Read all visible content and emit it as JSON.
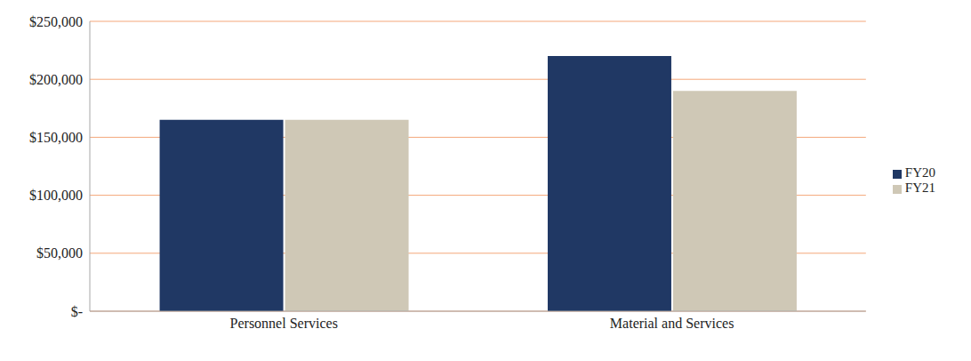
{
  "chart_data": {
    "type": "bar",
    "categories": [
      "Personnel Services",
      "Material and Services"
    ],
    "series": [
      {
        "name": "FY20",
        "color": "#203864",
        "values": [
          165000,
          220000
        ]
      },
      {
        "name": "FY21",
        "color": "#cfc8b6",
        "values": [
          165000,
          190000
        ]
      }
    ],
    "ylim": [
      0,
      250000
    ],
    "yticks": [
      {
        "value": 0,
        "label": "$-"
      },
      {
        "value": 50000,
        "label": "$50,000"
      },
      {
        "value": 100000,
        "label": "$100,000"
      },
      {
        "value": 150000,
        "label": "$150,000"
      },
      {
        "value": 200000,
        "label": "$200,000"
      },
      {
        "value": 250000,
        "label": "$250,000"
      }
    ],
    "grid": true,
    "legend": "right"
  }
}
